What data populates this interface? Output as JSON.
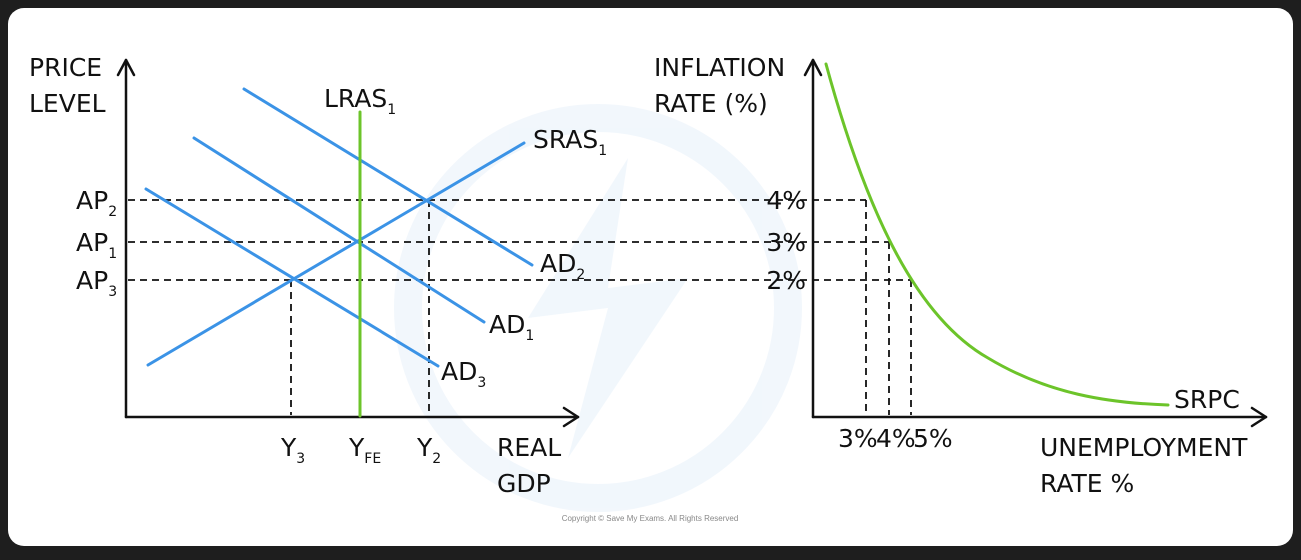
{
  "left_diagram": {
    "y_axis_label": [
      "PRICE",
      "LEVEL"
    ],
    "x_axis_label": [
      "REAL",
      "GDP"
    ],
    "curves": {
      "lras": {
        "base": "LRAS",
        "sub": "1",
        "color": "#6cc42a"
      },
      "sras": {
        "base": "SRAS",
        "sub": "1",
        "color": "#3b93e6"
      },
      "ad2": {
        "base": "AD",
        "sub": "2",
        "color": "#3b93e6"
      },
      "ad1": {
        "base": "AD",
        "sub": "1",
        "color": "#3b93e6"
      },
      "ad3": {
        "base": "AD",
        "sub": "3",
        "color": "#3b93e6"
      }
    },
    "y_ticks": [
      {
        "base": "AP",
        "sub": "2"
      },
      {
        "base": "AP",
        "sub": "1"
      },
      {
        "base": "AP",
        "sub": "3"
      }
    ],
    "x_ticks": [
      {
        "base": "Y",
        "sub": "3"
      },
      {
        "base": "Y",
        "sub": "FE"
      },
      {
        "base": "Y",
        "sub": "2"
      }
    ]
  },
  "right_diagram": {
    "y_axis_label": [
      "INFLATION",
      "RATE (%)"
    ],
    "x_axis_label": [
      "UNEMPLOYMENT",
      "RATE %"
    ],
    "curve_label": "SRPC",
    "curve_color": "#6cc42a",
    "y_ticks": [
      "4%",
      "3%",
      "2%"
    ],
    "x_ticks": [
      "3%",
      "4%",
      "5%"
    ]
  },
  "copyright": "Copyright © Save My Exams. All Rights Reserved"
}
